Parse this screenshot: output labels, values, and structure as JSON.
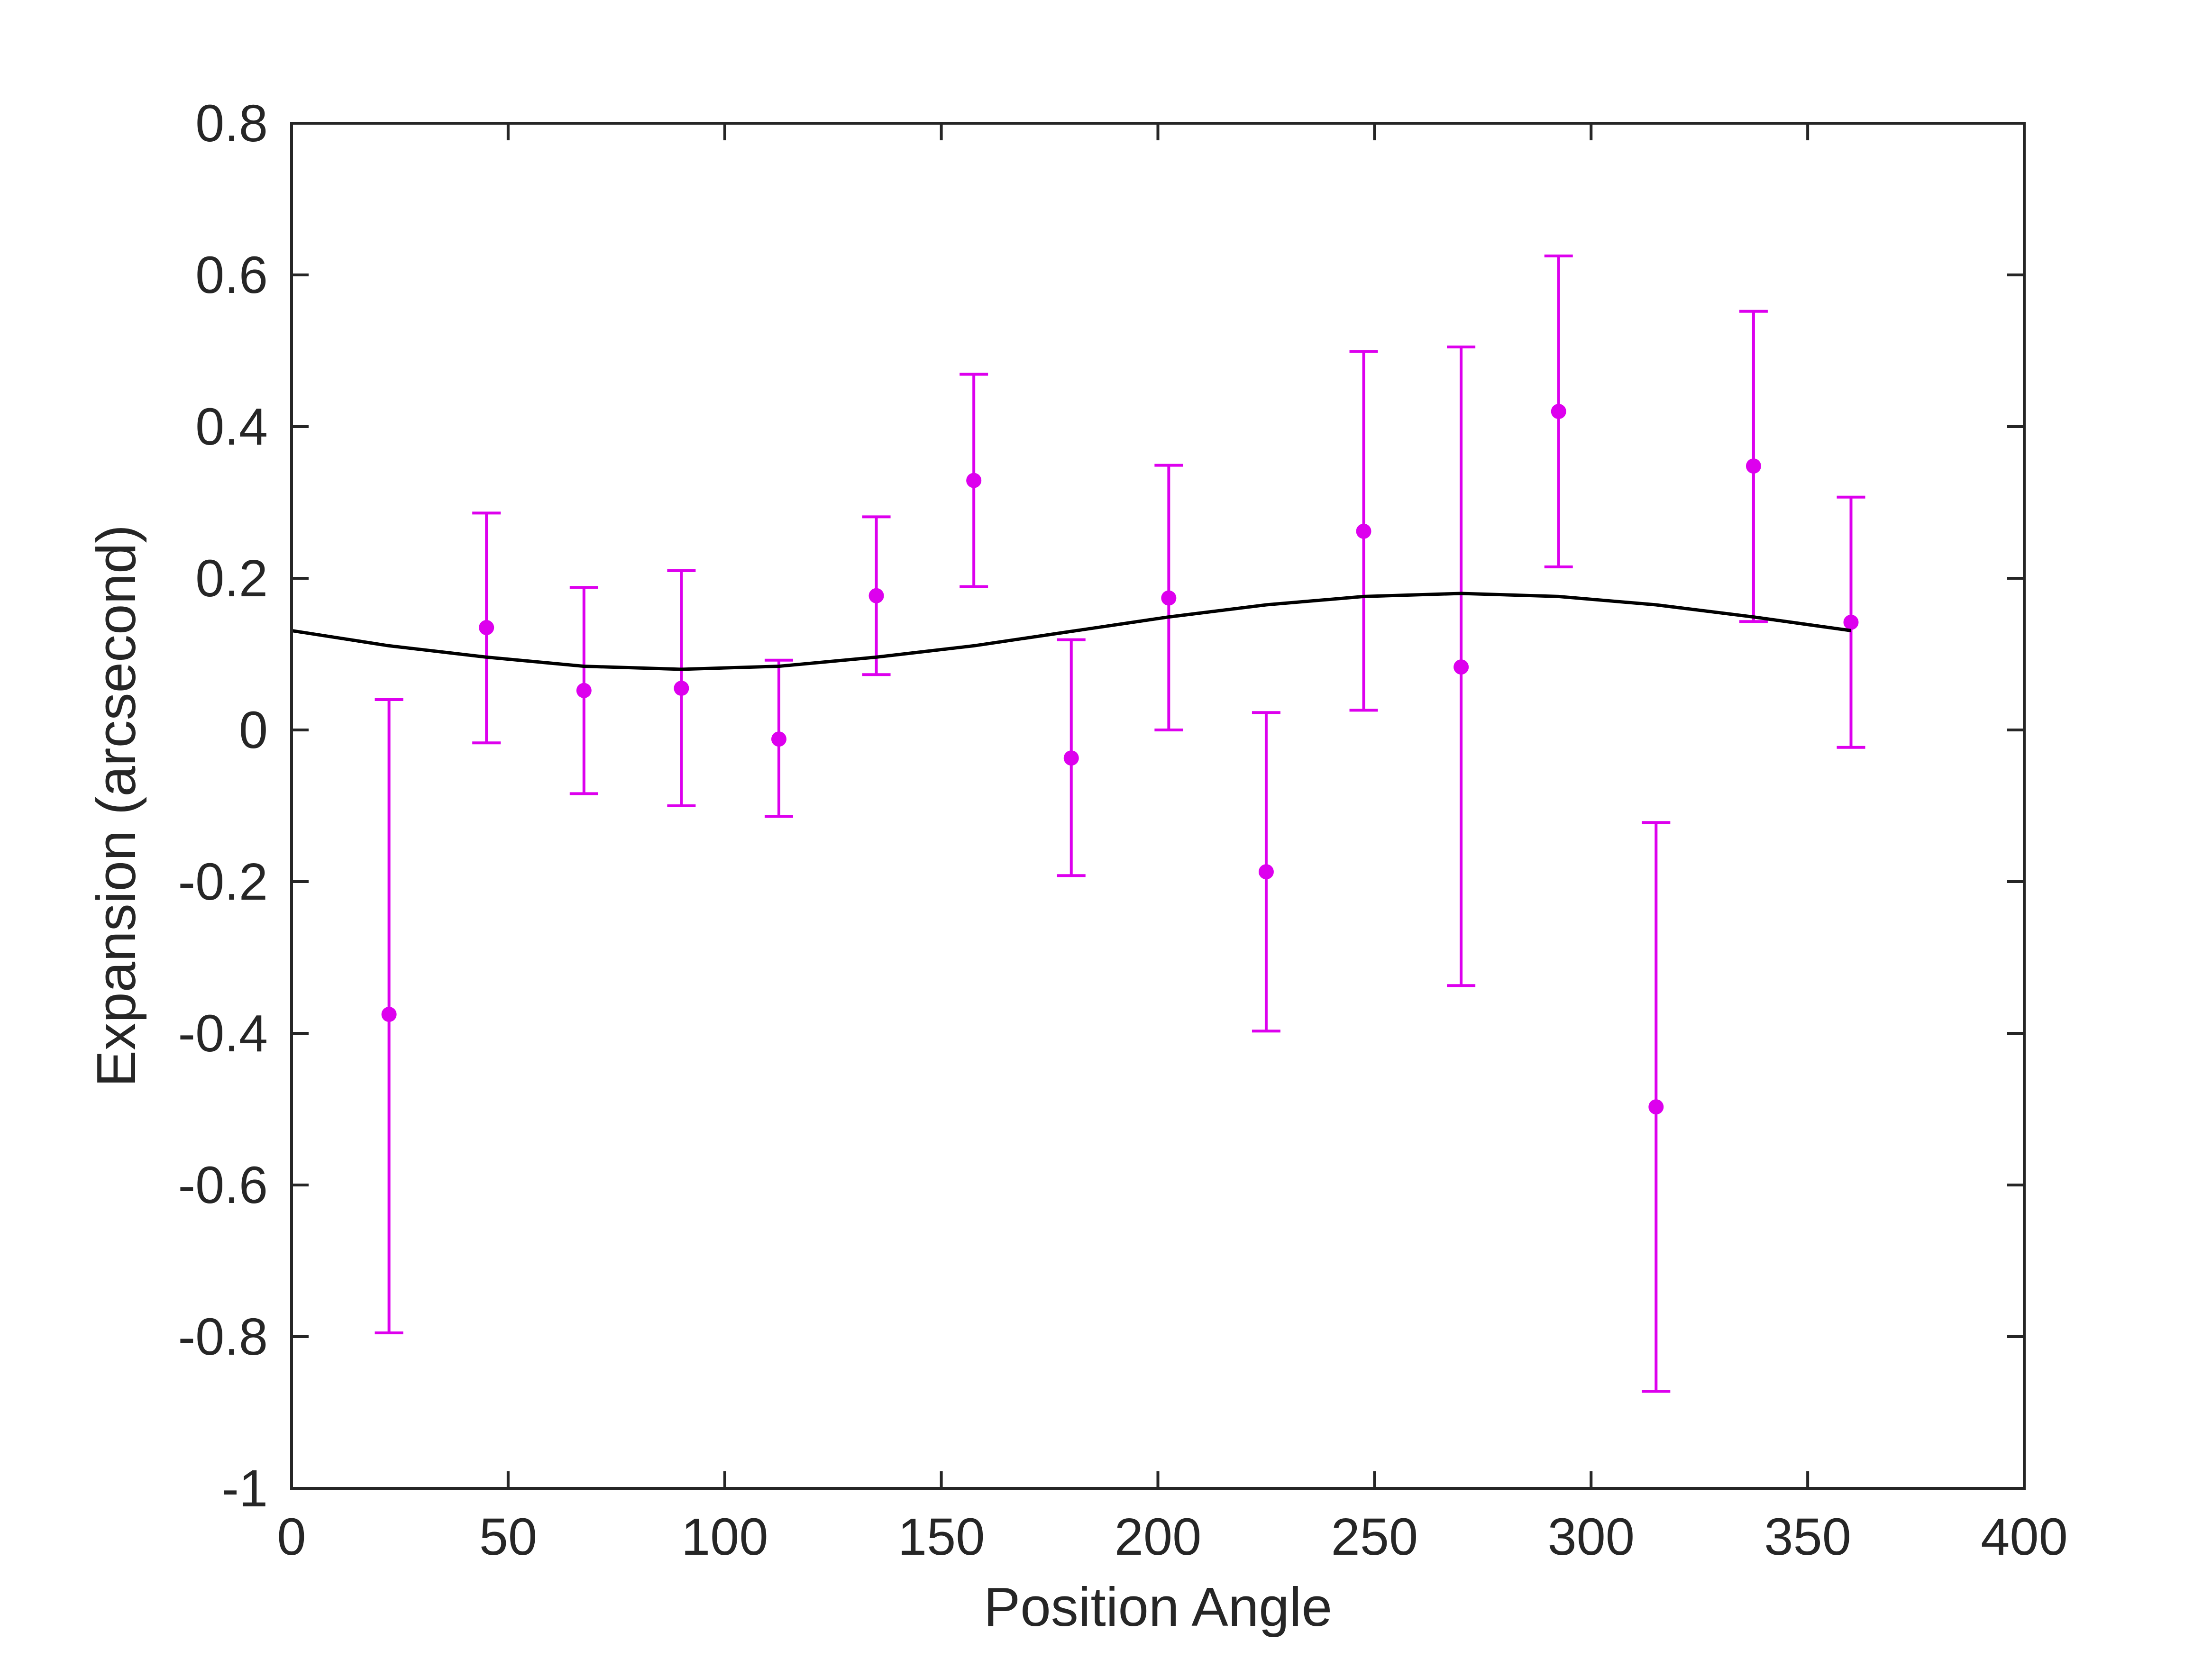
{
  "chart_data": {
    "type": "scatter",
    "title": "",
    "xlabel": "Position Angle",
    "ylabel": "Expansion (arcsecond)",
    "xlim": [
      0,
      400
    ],
    "ylim": [
      -1,
      0.8
    ],
    "xticks": [
      0,
      50,
      100,
      150,
      200,
      250,
      300,
      350,
      400
    ],
    "xtick_labels": [
      "0",
      "50",
      "100",
      "150",
      "200",
      "250",
      "300",
      "350",
      "400"
    ],
    "yticks": [
      -1,
      -0.8,
      -0.6,
      -0.4,
      -0.2,
      0,
      0.2,
      0.4,
      0.6,
      0.8
    ],
    "ytick_labels": [
      "-1",
      "-0.8",
      "-0.6",
      "-0.4",
      "-0.2",
      "0",
      "0.2",
      "0.4",
      "0.6",
      "0.8"
    ],
    "grid": false,
    "series": [
      {
        "type": "errorbar",
        "color": "#dd00ee",
        "x": [
          22.5,
          45,
          67.5,
          90,
          112.5,
          135,
          157.5,
          180,
          202.5,
          225,
          247.5,
          270,
          292.5,
          315,
          337.5,
          360
        ],
        "y": [
          -0.375,
          0.135,
          0.052,
          0.055,
          -0.012,
          0.177,
          0.329,
          -0.037,
          0.174,
          -0.187,
          0.262,
          0.083,
          0.42,
          -0.497,
          0.348,
          0.142
        ],
        "yerr_low": [
          0.42,
          0.152,
          0.136,
          0.155,
          0.102,
          0.104,
          0.14,
          0.155,
          0.174,
          0.21,
          0.236,
          0.42,
          0.205,
          0.375,
          0.205,
          0.165
        ],
        "yerr_high": [
          0.415,
          0.151,
          0.136,
          0.155,
          0.104,
          0.104,
          0.14,
          0.156,
          0.175,
          0.21,
          0.237,
          0.422,
          0.205,
          0.375,
          0.204,
          0.165
        ]
      },
      {
        "type": "line",
        "color": "#000000",
        "x": [
          0,
          22.5,
          45,
          67.5,
          90,
          112.5,
          135,
          157.5,
          180,
          202.5,
          225,
          247.5,
          270,
          292.5,
          315,
          337.5,
          360
        ],
        "y": [
          0.131,
          0.111,
          0.096,
          0.084,
          0.08,
          0.084,
          0.096,
          0.111,
          0.13,
          0.149,
          0.165,
          0.176,
          0.18,
          0.176,
          0.165,
          0.149,
          0.131
        ]
      }
    ]
  }
}
